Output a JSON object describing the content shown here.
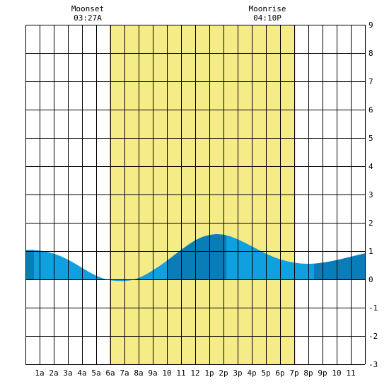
{
  "chart_data": {
    "type": "area",
    "title": "",
    "xlabel": "",
    "ylabel": "",
    "x_range": [
      0,
      24
    ],
    "ylim": [
      -3,
      9
    ],
    "grid": true,
    "x_ticks": [
      {
        "x": 1,
        "label": "1a"
      },
      {
        "x": 2,
        "label": "2a"
      },
      {
        "x": 3,
        "label": "3a"
      },
      {
        "x": 4,
        "label": "4a"
      },
      {
        "x": 5,
        "label": "5a"
      },
      {
        "x": 6,
        "label": "6a"
      },
      {
        "x": 7,
        "label": "7a"
      },
      {
        "x": 8,
        "label": "8a"
      },
      {
        "x": 9,
        "label": "9a"
      },
      {
        "x": 10,
        "label": "10"
      },
      {
        "x": 11,
        "label": "11"
      },
      {
        "x": 12,
        "label": "12"
      },
      {
        "x": 13,
        "label": "1p"
      },
      {
        "x": 14,
        "label": "2p"
      },
      {
        "x": 15,
        "label": "3p"
      },
      {
        "x": 16,
        "label": "4p"
      },
      {
        "x": 17,
        "label": "5p"
      },
      {
        "x": 18,
        "label": "6p"
      },
      {
        "x": 19,
        "label": "7p"
      },
      {
        "x": 20,
        "label": "8p"
      },
      {
        "x": 21,
        "label": "9p"
      },
      {
        "x": 22,
        "label": "10"
      },
      {
        "x": 23,
        "label": "11"
      }
    ],
    "y_ticks": [
      -3,
      -2,
      -1,
      0,
      1,
      2,
      3,
      4,
      5,
      6,
      7,
      8,
      9
    ],
    "daylight": {
      "start": 5.9,
      "end": 19.1
    },
    "tide": {
      "x": [
        0,
        0.5,
        1,
        1.5,
        2,
        2.5,
        3,
        3.5,
        4,
        4.5,
        5,
        5.5,
        6,
        6.5,
        7,
        7.5,
        8,
        8.5,
        9,
        9.5,
        10,
        10.5,
        11,
        11.5,
        12,
        12.5,
        13,
        13.5,
        14,
        14.5,
        15,
        15.5,
        16,
        16.5,
        17,
        17.5,
        18,
        18.5,
        19,
        19.5,
        20,
        20.5,
        21,
        21.5,
        22,
        22.5,
        23,
        23.5,
        24
      ],
      "y": [
        1.03,
        1.04,
        1.02,
        0.98,
        0.91,
        0.82,
        0.7,
        0.56,
        0.41,
        0.26,
        0.13,
        0.03,
        -0.03,
        -0.06,
        -0.06,
        -0.03,
        0.05,
        0.17,
        0.32,
        0.48,
        0.66,
        0.85,
        1.04,
        1.22,
        1.38,
        1.5,
        1.57,
        1.6,
        1.58,
        1.52,
        1.42,
        1.3,
        1.17,
        1.04,
        0.91,
        0.8,
        0.71,
        0.64,
        0.59,
        0.56,
        0.55,
        0.56,
        0.59,
        0.63,
        0.68,
        0.74,
        0.8,
        0.86,
        0.92
      ]
    },
    "dark_bands": [
      [
        0,
        0.6
      ],
      [
        10.0,
        14.2
      ],
      [
        20.4,
        24
      ]
    ],
    "colors": {
      "daylight": "#f5ec87",
      "tide_light": "#0fa0e0",
      "tide_dark": "#0a7db8",
      "grid": "#000000"
    },
    "annotations": [
      {
        "x": 4.4,
        "label": "Moonset",
        "time": "03:27A"
      },
      {
        "x": 17.1,
        "label": "Moonrise",
        "time": "04:10P"
      }
    ]
  }
}
